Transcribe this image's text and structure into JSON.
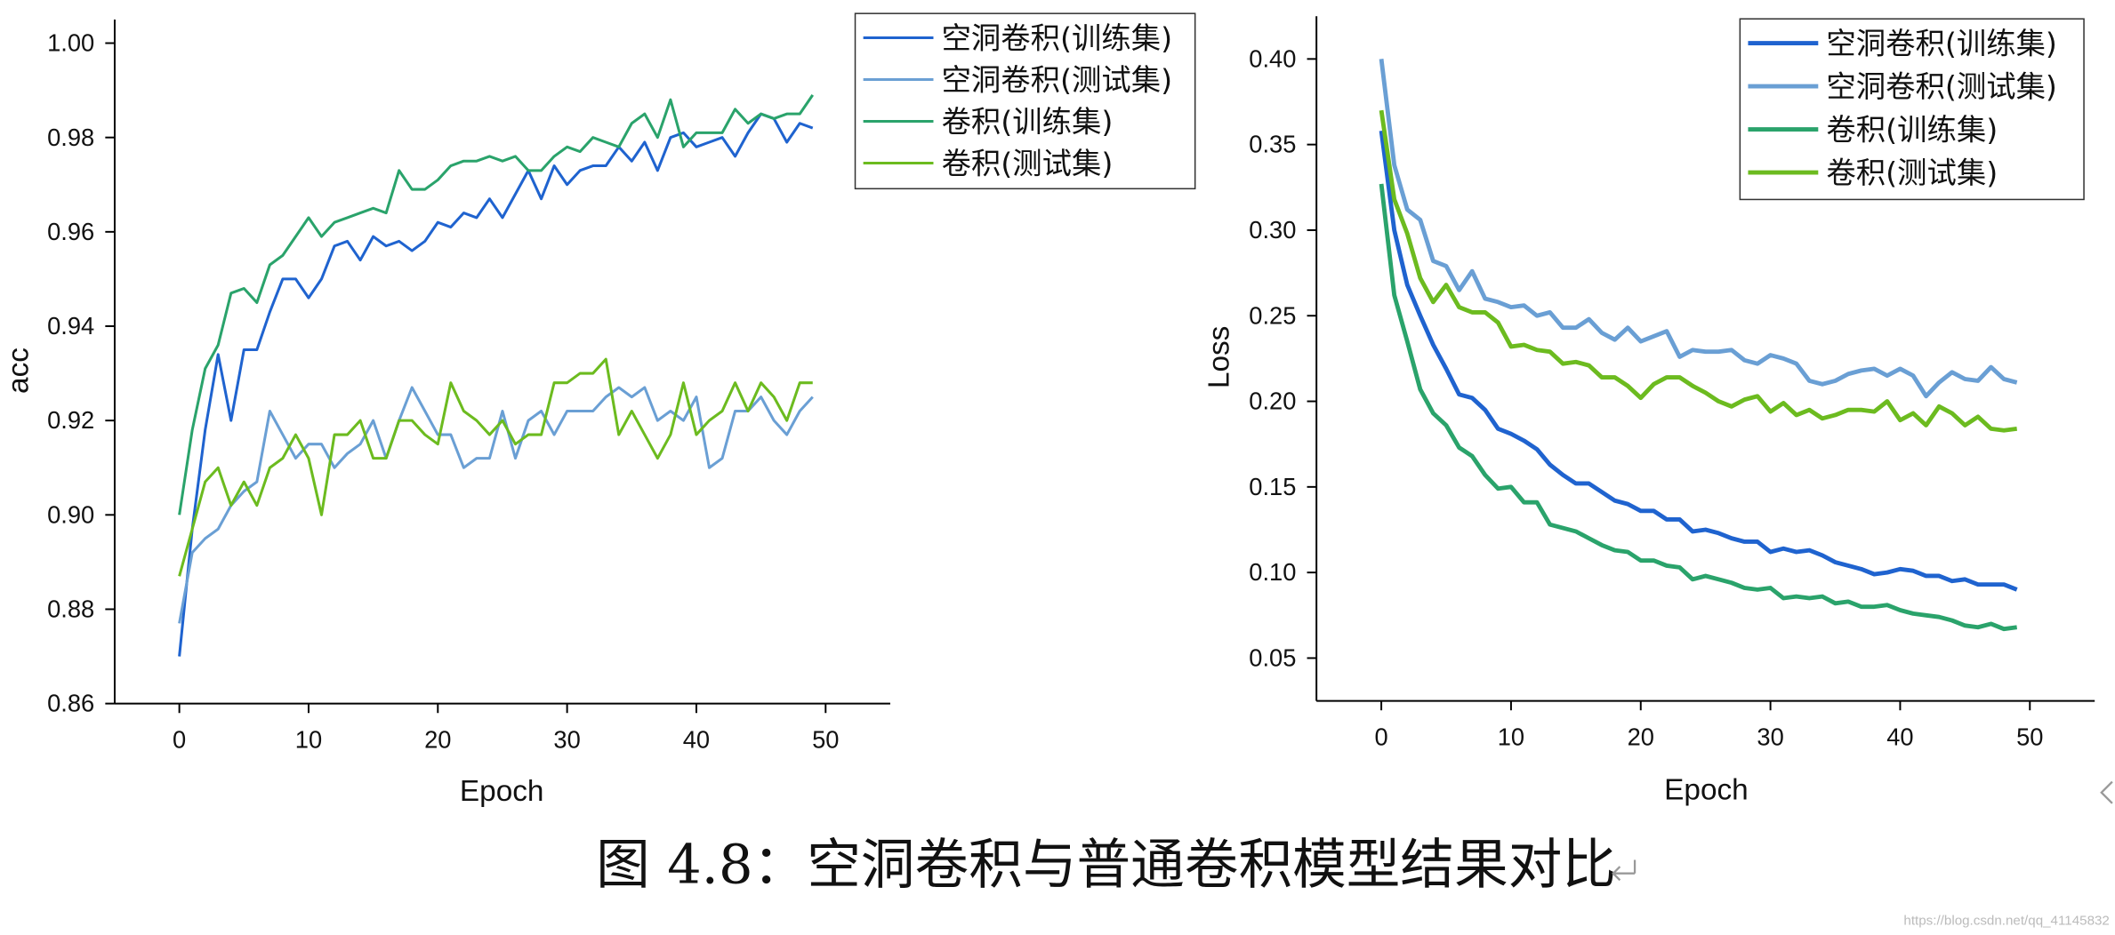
{
  "chart_data": [
    {
      "type": "line",
      "y_label": "acc",
      "x_label": "Epoch",
      "legend": "upper right",
      "x": [
        0,
        1,
        2,
        3,
        4,
        5,
        6,
        7,
        8,
        9,
        10,
        11,
        12,
        13,
        14,
        15,
        16,
        17,
        18,
        19,
        20,
        21,
        22,
        23,
        24,
        25,
        26,
        27,
        28,
        29,
        30,
        31,
        32,
        33,
        34,
        35,
        36,
        37,
        38,
        39,
        40,
        41,
        42,
        43,
        44,
        45,
        46,
        47,
        48,
        49
      ],
      "xlim": [
        -5,
        55
      ],
      "xticks": [
        0,
        10,
        20,
        30,
        40,
        50
      ],
      "ylim": [
        0.86,
        1.005
      ],
      "yticks": [
        0.86,
        0.88,
        {
          "value": 0.9,
          "label": "0.90"
        },
        0.92,
        0.94,
        0.96,
        0.98,
        {
          "value": 1,
          "label": "1.00"
        }
      ],
      "series": [
        {
          "name": "空洞卷积(训练集)",
          "color": "#1f63cf",
          "values": [
            0.87,
            0.897,
            0.918,
            0.934,
            0.92,
            0.935,
            0.935,
            0.943,
            0.95,
            0.95,
            0.946,
            0.95,
            0.957,
            0.958,
            0.954,
            0.959,
            0.957,
            0.958,
            0.956,
            0.958,
            0.962,
            0.961,
            0.964,
            0.963,
            0.967,
            0.963,
            0.968,
            0.973,
            0.967,
            0.974,
            0.97,
            0.973,
            0.974,
            0.974,
            0.978,
            0.975,
            0.979,
            0.973,
            0.98,
            0.981,
            0.978,
            0.979,
            0.98,
            0.976,
            0.981,
            0.985,
            0.984,
            0.979,
            0.983,
            0.982
          ]
        },
        {
          "name": "空洞卷积(测试集)",
          "color": "#6a9fd4",
          "values": [
            0.877,
            0.892,
            0.895,
            0.897,
            0.902,
            0.905,
            0.907,
            0.922,
            0.917,
            0.912,
            0.915,
            0.915,
            0.91,
            0.913,
            0.915,
            0.92,
            0.912,
            0.92,
            0.927,
            0.922,
            0.917,
            0.917,
            0.91,
            0.912,
            0.912,
            0.922,
            0.912,
            0.92,
            0.922,
            0.917,
            0.922,
            0.922,
            0.922,
            0.925,
            0.927,
            0.925,
            0.927,
            0.92,
            0.922,
            0.92,
            0.925,
            0.91,
            0.912,
            0.922,
            0.922,
            0.925,
            0.92,
            0.917,
            0.922,
            0.925
          ]
        },
        {
          "name": "卷积(训练集)",
          "color": "#2aa36b",
          "values": [
            0.9,
            0.918,
            0.931,
            0.936,
            0.947,
            0.948,
            0.945,
            0.953,
            0.955,
            0.959,
            0.963,
            0.959,
            0.962,
            0.963,
            0.964,
            0.965,
            0.964,
            0.973,
            0.969,
            0.969,
            0.971,
            0.974,
            0.975,
            0.975,
            0.976,
            0.975,
            0.976,
            0.973,
            0.973,
            0.976,
            0.978,
            0.977,
            0.98,
            0.979,
            0.978,
            0.983,
            0.985,
            0.98,
            0.988,
            0.978,
            0.981,
            0.981,
            0.981,
            0.986,
            0.983,
            0.985,
            0.984,
            0.985,
            0.985,
            0.989
          ]
        },
        {
          "name": "卷积(测试集)",
          "color": "#6cbb1f",
          "values": [
            0.887,
            0.897,
            0.907,
            0.91,
            0.902,
            0.907,
            0.902,
            0.91,
            0.912,
            0.917,
            0.912,
            0.9,
            0.917,
            0.917,
            0.92,
            0.912,
            0.912,
            0.92,
            0.92,
            0.917,
            0.915,
            0.928,
            0.922,
            0.92,
            0.917,
            0.92,
            0.915,
            0.917,
            0.917,
            0.928,
            0.928,
            0.93,
            0.93,
            0.933,
            0.917,
            0.922,
            0.917,
            0.912,
            0.917,
            0.928,
            0.917,
            0.92,
            0.922,
            0.928,
            0.922,
            0.928,
            0.925,
            0.92,
            0.928,
            0.928
          ]
        }
      ]
    },
    {
      "type": "line",
      "y_label": "Loss",
      "x_label": "Epoch",
      "legend": "upper right",
      "x": [
        0,
        1,
        2,
        3,
        4,
        5,
        6,
        7,
        8,
        9,
        10,
        11,
        12,
        13,
        14,
        15,
        16,
        17,
        18,
        19,
        20,
        21,
        22,
        23,
        24,
        25,
        26,
        27,
        28,
        29,
        30,
        31,
        32,
        33,
        34,
        35,
        36,
        37,
        38,
        39,
        40,
        41,
        42,
        43,
        44,
        45,
        46,
        47,
        48,
        49
      ],
      "xlim": [
        -5,
        55
      ],
      "xticks": [
        0,
        10,
        20,
        30,
        40,
        50
      ],
      "ylim": [
        0.025,
        0.425
      ],
      "yticks": [
        0.05,
        {
          "value": 0.1,
          "label": "0.10"
        },
        0.15,
        {
          "value": 0.2,
          "label": "0.20"
        },
        0.25,
        {
          "value": 0.3,
          "label": "0.30"
        },
        0.35,
        {
          "value": 0.4,
          "label": "0.40"
        }
      ],
      "series": [
        {
          "name": "空洞卷积(训练集)",
          "color": "#1f63cf",
          "values": [
            0.358,
            0.3,
            0.268,
            0.25,
            0.233,
            0.219,
            0.204,
            0.202,
            0.195,
            0.184,
            0.181,
            0.177,
            0.172,
            0.163,
            0.157,
            0.152,
            0.152,
            0.147,
            0.142,
            0.14,
            0.136,
            0.136,
            0.131,
            0.131,
            0.124,
            0.125,
            0.123,
            0.12,
            0.118,
            0.118,
            0.112,
            0.114,
            0.112,
            0.113,
            0.11,
            0.106,
            0.104,
            0.102,
            0.099,
            0.1,
            0.102,
            0.101,
            0.098,
            0.098,
            0.095,
            0.096,
            0.093,
            0.093,
            0.093,
            0.09
          ]
        },
        {
          "name": "空洞卷积(测试集)",
          "color": "#6a9fd4",
          "values": [
            0.4,
            0.338,
            0.312,
            0.306,
            0.282,
            0.279,
            0.265,
            0.276,
            0.26,
            0.258,
            0.255,
            0.256,
            0.25,
            0.252,
            0.243,
            0.243,
            0.248,
            0.24,
            0.236,
            0.243,
            0.235,
            0.238,
            0.241,
            0.226,
            0.23,
            0.229,
            0.229,
            0.23,
            0.224,
            0.222,
            0.227,
            0.225,
            0.222,
            0.212,
            0.21,
            0.212,
            0.216,
            0.218,
            0.219,
            0.215,
            0.219,
            0.215,
            0.203,
            0.211,
            0.217,
            0.213,
            0.212,
            0.22,
            0.213,
            0.211
          ]
        },
        {
          "name": "卷积(训练集)",
          "color": "#2aa36b",
          "values": [
            0.327,
            0.262,
            0.235,
            0.207,
            0.193,
            0.186,
            0.173,
            0.168,
            0.157,
            0.149,
            0.15,
            0.141,
            0.141,
            0.128,
            0.126,
            0.124,
            0.12,
            0.116,
            0.113,
            0.112,
            0.107,
            0.107,
            0.104,
            0.103,
            0.096,
            0.098,
            0.096,
            0.094,
            0.091,
            0.09,
            0.091,
            0.085,
            0.086,
            0.085,
            0.086,
            0.082,
            0.083,
            0.08,
            0.08,
            0.081,
            0.078,
            0.076,
            0.075,
            0.074,
            0.072,
            0.069,
            0.068,
            0.07,
            0.067,
            0.068
          ]
        },
        {
          "name": "卷积(测试集)",
          "color": "#6cbb1f",
          "values": [
            0.37,
            0.318,
            0.298,
            0.272,
            0.258,
            0.268,
            0.255,
            0.252,
            0.252,
            0.246,
            0.232,
            0.233,
            0.23,
            0.229,
            0.222,
            0.223,
            0.221,
            0.214,
            0.214,
            0.209,
            0.202,
            0.21,
            0.214,
            0.214,
            0.209,
            0.205,
            0.2,
            0.197,
            0.201,
            0.203,
            0.194,
            0.199,
            0.192,
            0.195,
            0.19,
            0.192,
            0.195,
            0.195,
            0.194,
            0.2,
            0.189,
            0.193,
            0.186,
            0.197,
            0.193,
            0.186,
            0.191,
            0.184,
            0.183,
            0.184
          ]
        }
      ]
    }
  ],
  "caption": "图 4.8：空洞卷积与普通卷积模型结果对比",
  "watermark": "https://blog.csdn.net/qq_41145832"
}
